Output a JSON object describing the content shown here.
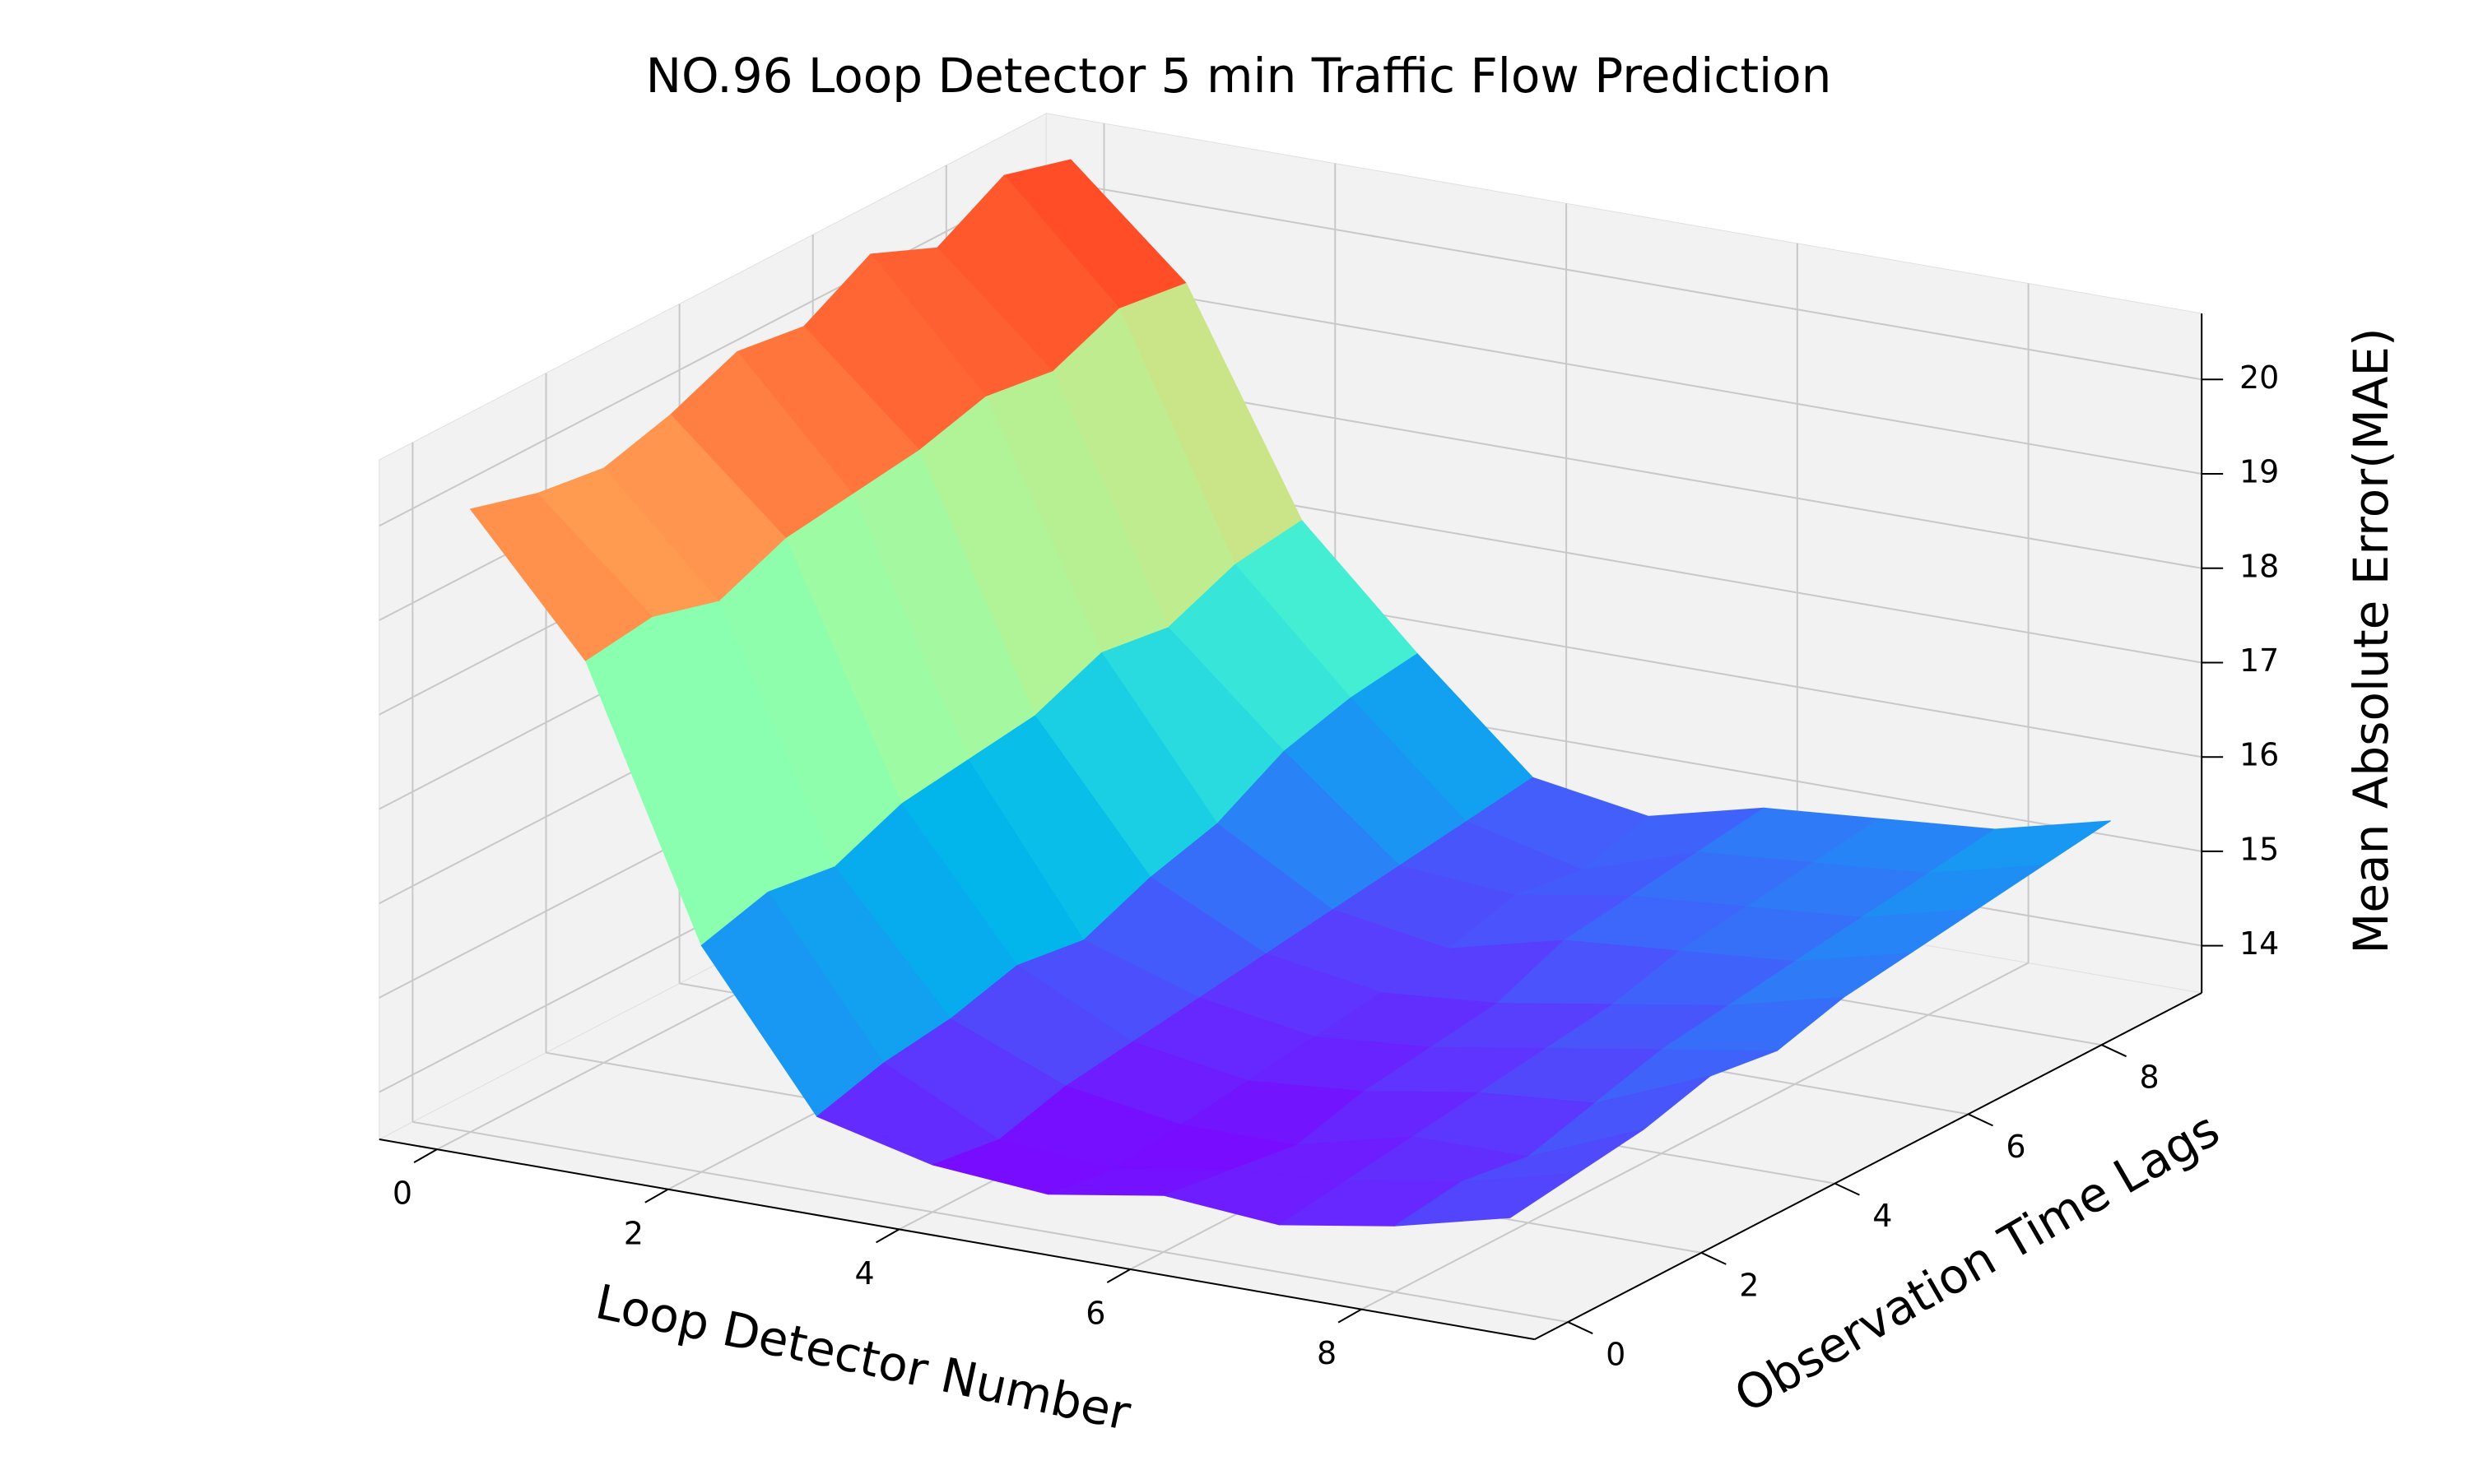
{
  "chart_data": {
    "type": "surface",
    "title": "NO.96 Loop Detector 5 min Traffic Flow Prediction",
    "xlabel": "Loop Detector Number",
    "ylabel": "Observation Time Lags",
    "zlabel": "Mean Absolute Error(MAE)",
    "colormap": "rainbow",
    "grid": true,
    "x": [
      0,
      1,
      2,
      3,
      4,
      5,
      6,
      7,
      8,
      9
    ],
    "y": [
      0,
      1,
      2,
      3,
      4,
      5,
      6,
      7,
      8,
      9
    ],
    "z": [
      [
        20.1,
        18.7,
        15.9,
        14.3,
        14.0,
        13.9,
        14.1,
        14.0,
        14.2,
        14.5
      ],
      [
        19.9,
        18.8,
        16.1,
        14.5,
        13.9,
        13.8,
        14.0,
        14.1,
        14.3,
        14.6
      ],
      [
        19.8,
        18.6,
        16.0,
        14.6,
        14.1,
        13.9,
        13.9,
        14.2,
        14.2,
        14.7
      ],
      [
        20.0,
        18.9,
        16.3,
        14.8,
        14.2,
        14.0,
        14.1,
        14.3,
        14.4,
        14.9
      ],
      [
        20.3,
        19.0,
        16.4,
        14.7,
        14.3,
        14.1,
        14.2,
        14.4,
        14.6,
        14.8
      ],
      [
        20.2,
        19.1,
        16.5,
        15.0,
        14.4,
        14.2,
        14.3,
        14.5,
        14.7,
        15.0
      ],
      [
        20.6,
        19.3,
        16.8,
        15.2,
        14.5,
        14.3,
        14.6,
        14.7,
        14.8,
        15.1
      ],
      [
        20.3,
        19.2,
        16.7,
        15.6,
        14.6,
        14.5,
        14.7,
        14.8,
        14.9,
        15.2
      ],
      [
        20.7,
        19.5,
        17.0,
        15.8,
        14.7,
        14.4,
        14.8,
        14.9,
        15.0,
        15.3
      ],
      [
        20.5,
        19.4,
        17.1,
        15.9,
        14.8,
        14.6,
        14.9,
        15.0,
        15.1,
        15.4
      ]
    ],
    "xlim": [
      -0.5,
      9.5
    ],
    "ylim": [
      -0.5,
      9.5
    ],
    "zlim": [
      13.5,
      20.7
    ],
    "xticks": [
      0,
      2,
      4,
      6,
      8
    ],
    "yticks": [
      0,
      2,
      4,
      6,
      8
    ],
    "zticks": [
      14,
      15,
      16,
      17,
      18,
      19,
      20
    ]
  }
}
